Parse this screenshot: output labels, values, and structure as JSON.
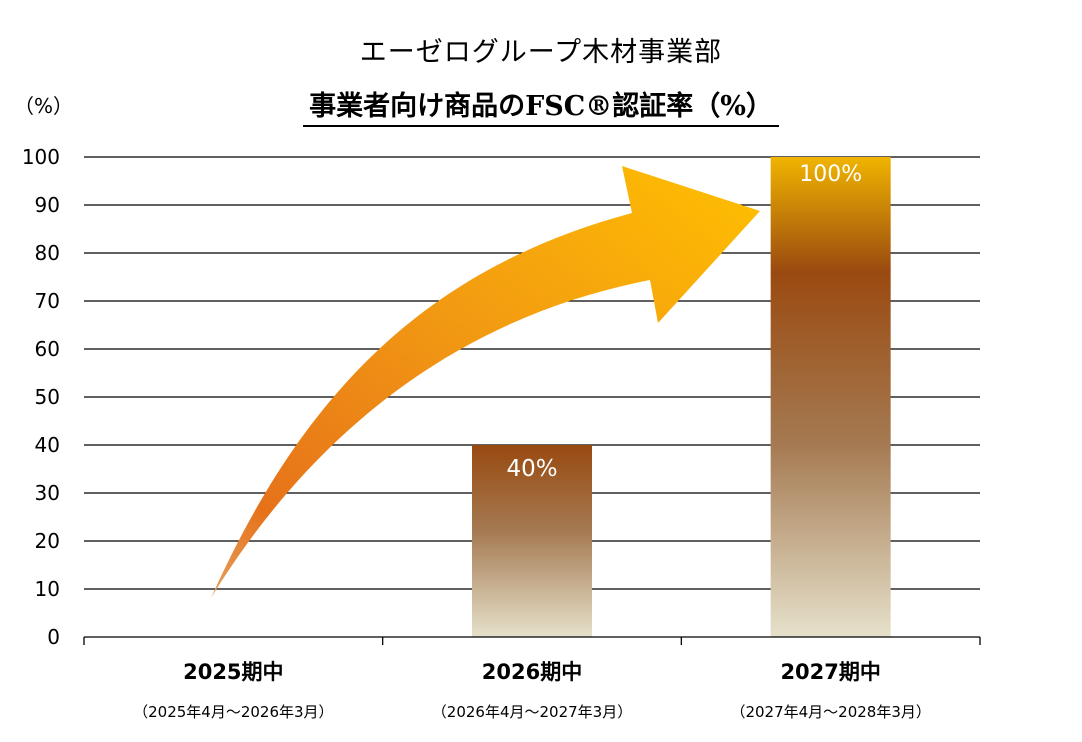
{
  "header": {
    "title": "エーゼログループ木材事業部",
    "subtitle": "事業者向け商品のFSC®認証率（%）"
  },
  "chart_data": {
    "type": "bar",
    "title": "事業者向け商品のFSC®認証率（%）",
    "ylabel": "（%）",
    "xlabel": "",
    "ylim": [
      0,
      100
    ],
    "yticks": [
      0,
      10,
      20,
      30,
      40,
      50,
      60,
      70,
      80,
      90,
      100
    ],
    "grid": true,
    "categories": [
      "2025期中",
      "2026期中",
      "2027期中"
    ],
    "category_periods": [
      "（2025年4月～2026年3月）",
      "（2026年4月～2027年3月）",
      "（2027年4月～2028年3月）"
    ],
    "values": [
      0,
      40,
      100
    ],
    "data_labels": [
      "",
      "40%",
      "100%"
    ],
    "annotation": "upward trend arrow",
    "colors": {
      "bar_top": "#9a4a10",
      "bar_bottom": "#e6e1cb",
      "arrow_start": "#e6721a",
      "arrow_end": "#ffc000"
    }
  }
}
